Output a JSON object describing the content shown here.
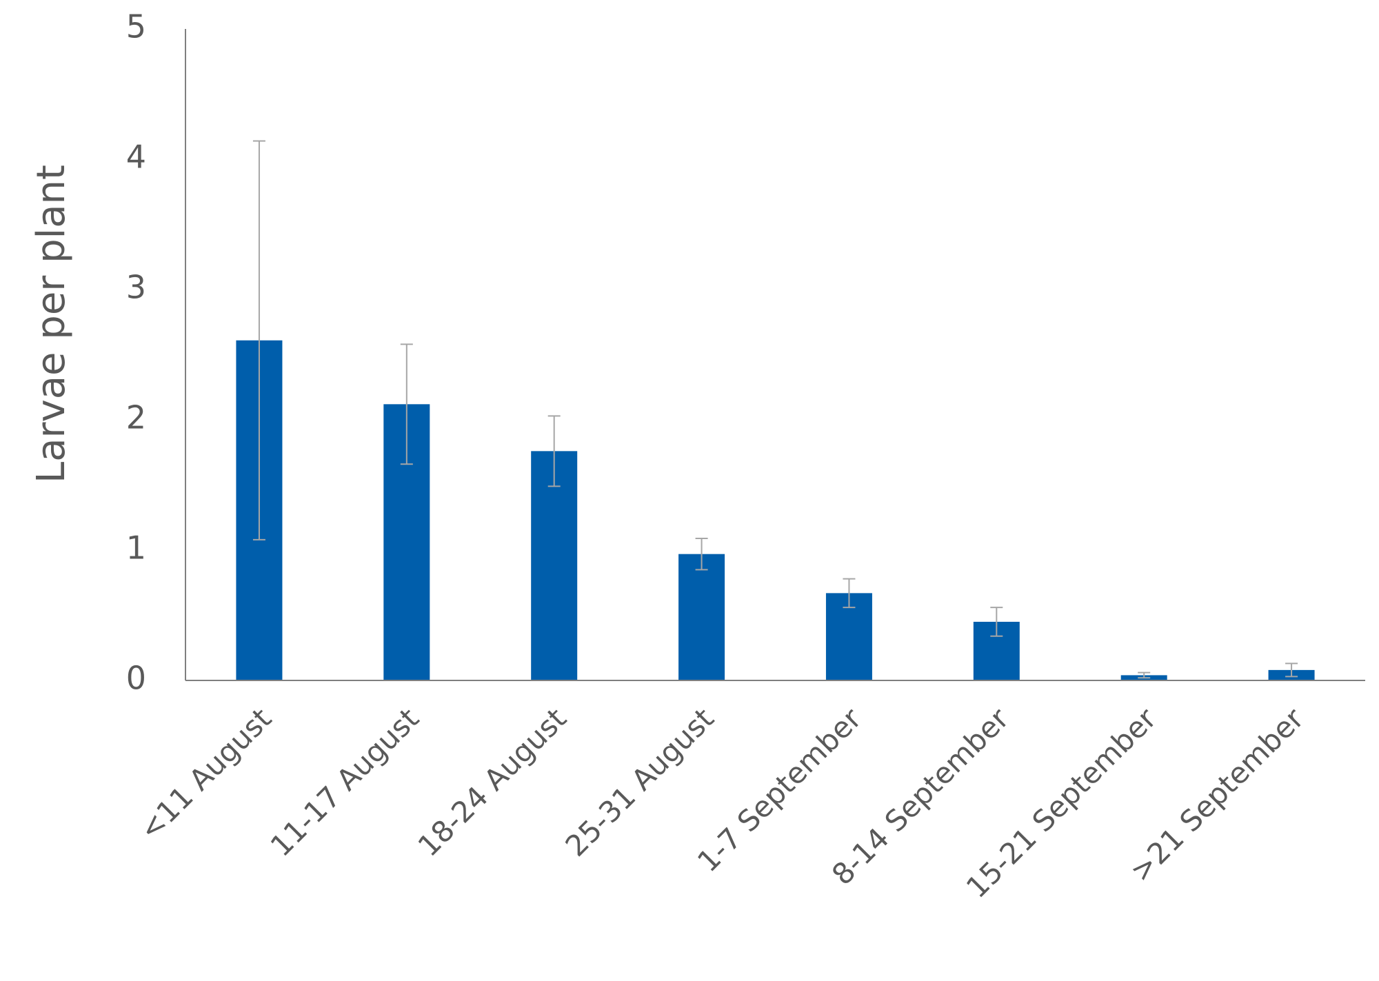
{
  "chart_data": {
    "type": "bar",
    "y_label": "Larvae per plant",
    "categories": [
      "<11 August",
      "11-17 August",
      "18-24 August",
      "25-31 August",
      "1-7 September",
      "8-14 September",
      "15-21 September",
      ">21 September"
    ],
    "values": [
      2.61,
      2.12,
      1.76,
      0.97,
      0.67,
      0.45,
      0.04,
      0.08
    ],
    "errors": [
      1.53,
      0.46,
      0.27,
      0.12,
      0.11,
      0.11,
      0.02,
      0.05
    ],
    "color": "#005eab",
    "error_color": "#a6a6a6",
    "ylim": [
      0,
      5
    ],
    "yticks": [
      0,
      1,
      2,
      3,
      4,
      5
    ],
    "grid": false
  }
}
